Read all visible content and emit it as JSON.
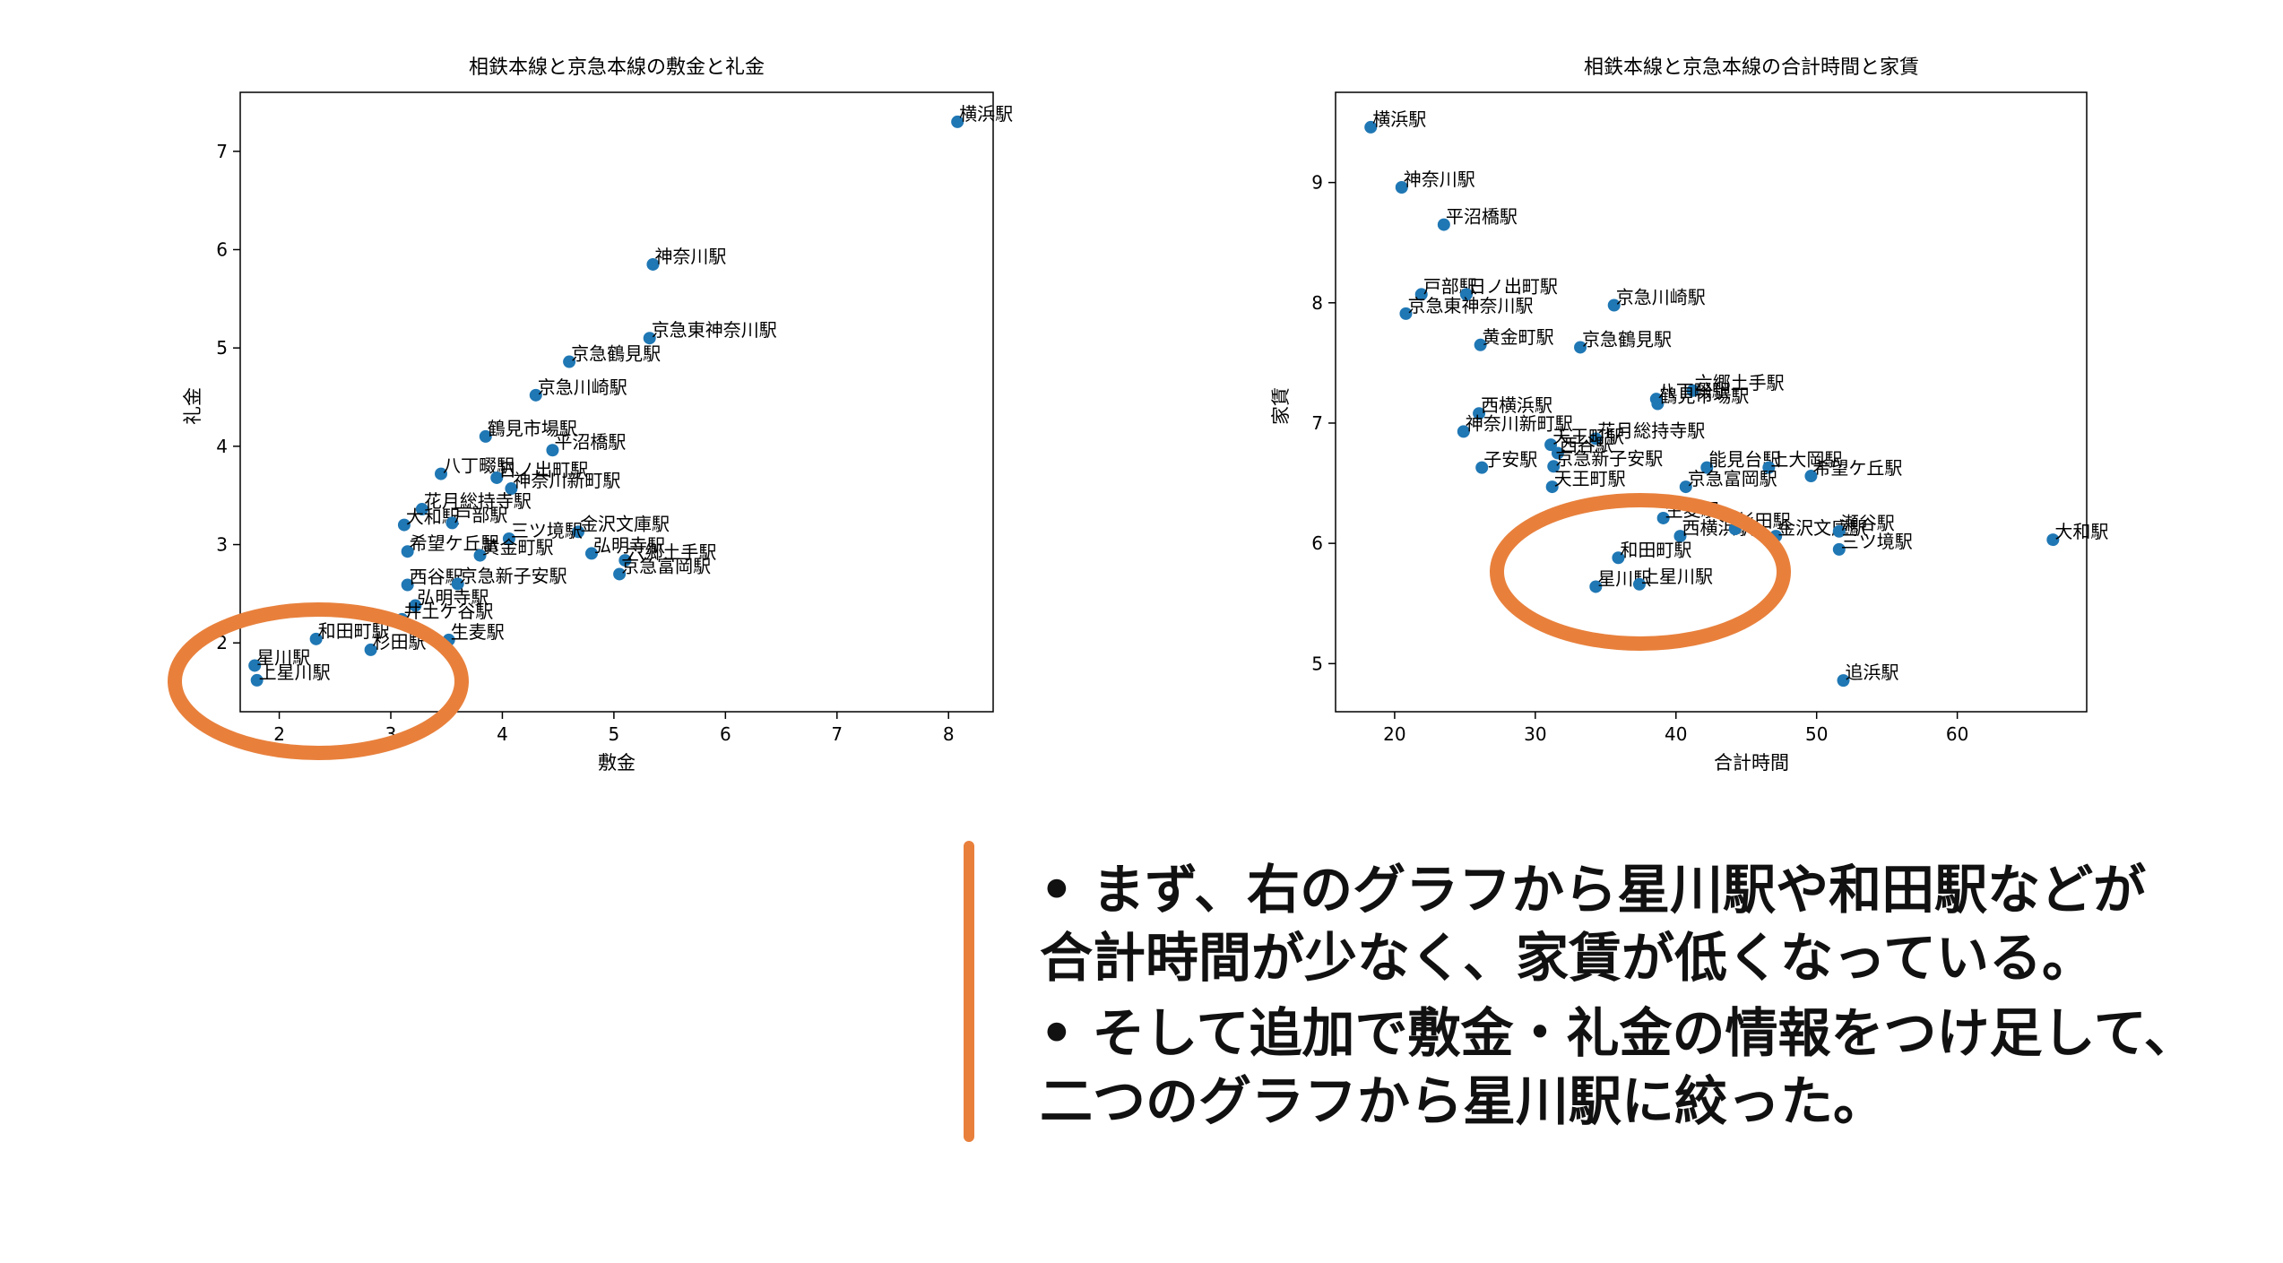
{
  "accent_color": "#e8803c",
  "point_color": "#1f77b4",
  "chart_data": [
    {
      "type": "scatter",
      "title": "相鉄本線と京急本線の敷金と礼金",
      "xlabel": "敷金",
      "ylabel": "礼金",
      "xlim": [
        1.65,
        8.4
      ],
      "ylim": [
        1.3,
        7.6
      ],
      "xticks": [
        2,
        3,
        4,
        5,
        6,
        7,
        8
      ],
      "yticks": [
        2,
        3,
        4,
        5,
        6,
        7
      ],
      "grid": false,
      "points": [
        {
          "x": 8.08,
          "y": 7.3,
          "label": "横浜駅"
        },
        {
          "x": 5.35,
          "y": 5.85,
          "label": "神奈川駅"
        },
        {
          "x": 5.32,
          "y": 5.1,
          "label": "京急東神奈川駅"
        },
        {
          "x": 4.6,
          "y": 4.86,
          "label": "京急鶴見駅"
        },
        {
          "x": 4.3,
          "y": 4.52,
          "label": "京急川崎駅"
        },
        {
          "x": 3.85,
          "y": 4.1,
          "label": "鶴見市場駅"
        },
        {
          "x": 4.45,
          "y": 3.96,
          "label": "平沼橋駅"
        },
        {
          "x": 3.45,
          "y": 3.72,
          "label": "八丁畷駅"
        },
        {
          "x": 3.95,
          "y": 3.68,
          "label": "日ノ出町駅"
        },
        {
          "x": 4.08,
          "y": 3.57,
          "label": "神奈川新町駅"
        },
        {
          "x": 3.28,
          "y": 3.36,
          "label": "花月総持寺駅"
        },
        {
          "x": 3.12,
          "y": 3.2,
          "label": "大和駅"
        },
        {
          "x": 3.55,
          "y": 3.22,
          "label": "戸部駅"
        },
        {
          "x": 4.68,
          "y": 3.13,
          "label": "金沢文庫駅"
        },
        {
          "x": 4.06,
          "y": 3.06,
          "label": "三ツ境駅"
        },
        {
          "x": 3.15,
          "y": 2.93,
          "label": "希望ケ丘駅"
        },
        {
          "x": 5.1,
          "y": 2.84,
          "label": "六郷土手駅"
        },
        {
          "x": 3.8,
          "y": 2.89,
          "label": "黄金町駅"
        },
        {
          "x": 4.8,
          "y": 2.91,
          "label": "弘明寺駅"
        },
        {
          "x": 5.05,
          "y": 2.7,
          "label": "京急富岡駅"
        },
        {
          "x": 3.15,
          "y": 2.59,
          "label": "西谷駅"
        },
        {
          "x": 3.6,
          "y": 2.6,
          "label": "京急新子安駅"
        },
        {
          "x": 3.22,
          "y": 2.38,
          "label": "弘明寺駅"
        },
        {
          "x": 3.1,
          "y": 2.24,
          "label": "井土ケ谷駅"
        },
        {
          "x": 3.52,
          "y": 2.03,
          "label": "生麦駅"
        },
        {
          "x": 2.33,
          "y": 2.04,
          "label": "和田町駅"
        },
        {
          "x": 2.82,
          "y": 1.93,
          "label": "杉田駅"
        },
        {
          "x": 1.78,
          "y": 1.77,
          "label": "星川駅"
        },
        {
          "x": 1.8,
          "y": 1.62,
          "label": "上星川駅"
        }
      ]
    },
    {
      "type": "scatter",
      "title": "相鉄本線と京急本線の合計時間と家賃",
      "xlabel": "合計時間",
      "ylabel": "家賃",
      "xlim": [
        15.8,
        69.2
      ],
      "ylim": [
        4.6,
        9.75
      ],
      "xticks": [
        20,
        30,
        40,
        50,
        60
      ],
      "yticks": [
        5,
        6,
        7,
        8,
        9
      ],
      "grid": false,
      "points": [
        {
          "x": 18.3,
          "y": 9.46,
          "label": "横浜駅"
        },
        {
          "x": 20.5,
          "y": 8.96,
          "label": "神奈川駅"
        },
        {
          "x": 23.5,
          "y": 8.65,
          "label": "平沼橋駅"
        },
        {
          "x": 21.9,
          "y": 8.07,
          "label": "戸部駅"
        },
        {
          "x": 25.1,
          "y": 8.07,
          "label": "日ノ出町駅"
        },
        {
          "x": 20.8,
          "y": 7.91,
          "label": "京急東神奈川駅"
        },
        {
          "x": 35.6,
          "y": 7.98,
          "label": "京急川崎駅"
        },
        {
          "x": 26.1,
          "y": 7.65,
          "label": "黄金町駅"
        },
        {
          "x": 33.2,
          "y": 7.63,
          "label": "京急鶴見駅"
        },
        {
          "x": 41.2,
          "y": 7.27,
          "label": "六郷土手駅"
        },
        {
          "x": 38.6,
          "y": 7.2,
          "label": "八丁畷駅"
        },
        {
          "x": 38.7,
          "y": 7.16,
          "label": "鶴見市場駅"
        },
        {
          "x": 26.0,
          "y": 7.08,
          "label": "西横浜駅"
        },
        {
          "x": 24.9,
          "y": 6.93,
          "label": "神奈川新町駅"
        },
        {
          "x": 34.3,
          "y": 6.87,
          "label": "花月総持寺駅"
        },
        {
          "x": 31.1,
          "y": 6.82,
          "label": "天王町駅"
        },
        {
          "x": 31.6,
          "y": 6.75,
          "label": "西谷駅"
        },
        {
          "x": 26.2,
          "y": 6.63,
          "label": "子安駅"
        },
        {
          "x": 31.3,
          "y": 6.64,
          "label": "京急新子安駅"
        },
        {
          "x": 42.2,
          "y": 6.63,
          "label": "能見台駅"
        },
        {
          "x": 46.6,
          "y": 6.63,
          "label": "上大岡駅"
        },
        {
          "x": 49.6,
          "y": 6.56,
          "label": "希望ケ丘駅"
        },
        {
          "x": 31.2,
          "y": 6.47,
          "label": "天王町駅"
        },
        {
          "x": 40.7,
          "y": 6.47,
          "label": "京急富岡駅"
        },
        {
          "x": 39.1,
          "y": 6.21,
          "label": "生麦駅"
        },
        {
          "x": 40.3,
          "y": 6.06,
          "label": "西横浜駅"
        },
        {
          "x": 44.2,
          "y": 6.12,
          "label": "杉田駅"
        },
        {
          "x": 47.1,
          "y": 6.06,
          "label": "金沢文庫駅"
        },
        {
          "x": 51.6,
          "y": 6.1,
          "label": "瀬谷駅"
        },
        {
          "x": 51.6,
          "y": 5.95,
          "label": "三ツ境駅"
        },
        {
          "x": 35.9,
          "y": 5.88,
          "label": "和田町駅"
        },
        {
          "x": 34.3,
          "y": 5.64,
          "label": "星川駅"
        },
        {
          "x": 37.4,
          "y": 5.66,
          "label": "上星川駅"
        },
        {
          "x": 66.8,
          "y": 6.03,
          "label": "大和駅"
        },
        {
          "x": 51.9,
          "y": 4.86,
          "label": "追浜駅"
        }
      ]
    }
  ],
  "slide_text": {
    "bullet1_line1": "• まず、右のグラフから星川駅や和田駅などが",
    "bullet1_line2": "合計時間が少なく、家賃が低くなっている。",
    "bullet2_line1": "• そして追加で敷金・礼金の情報をつけ足して、",
    "bullet2_line2": "二つのグラフから星川駅に絞った。"
  }
}
